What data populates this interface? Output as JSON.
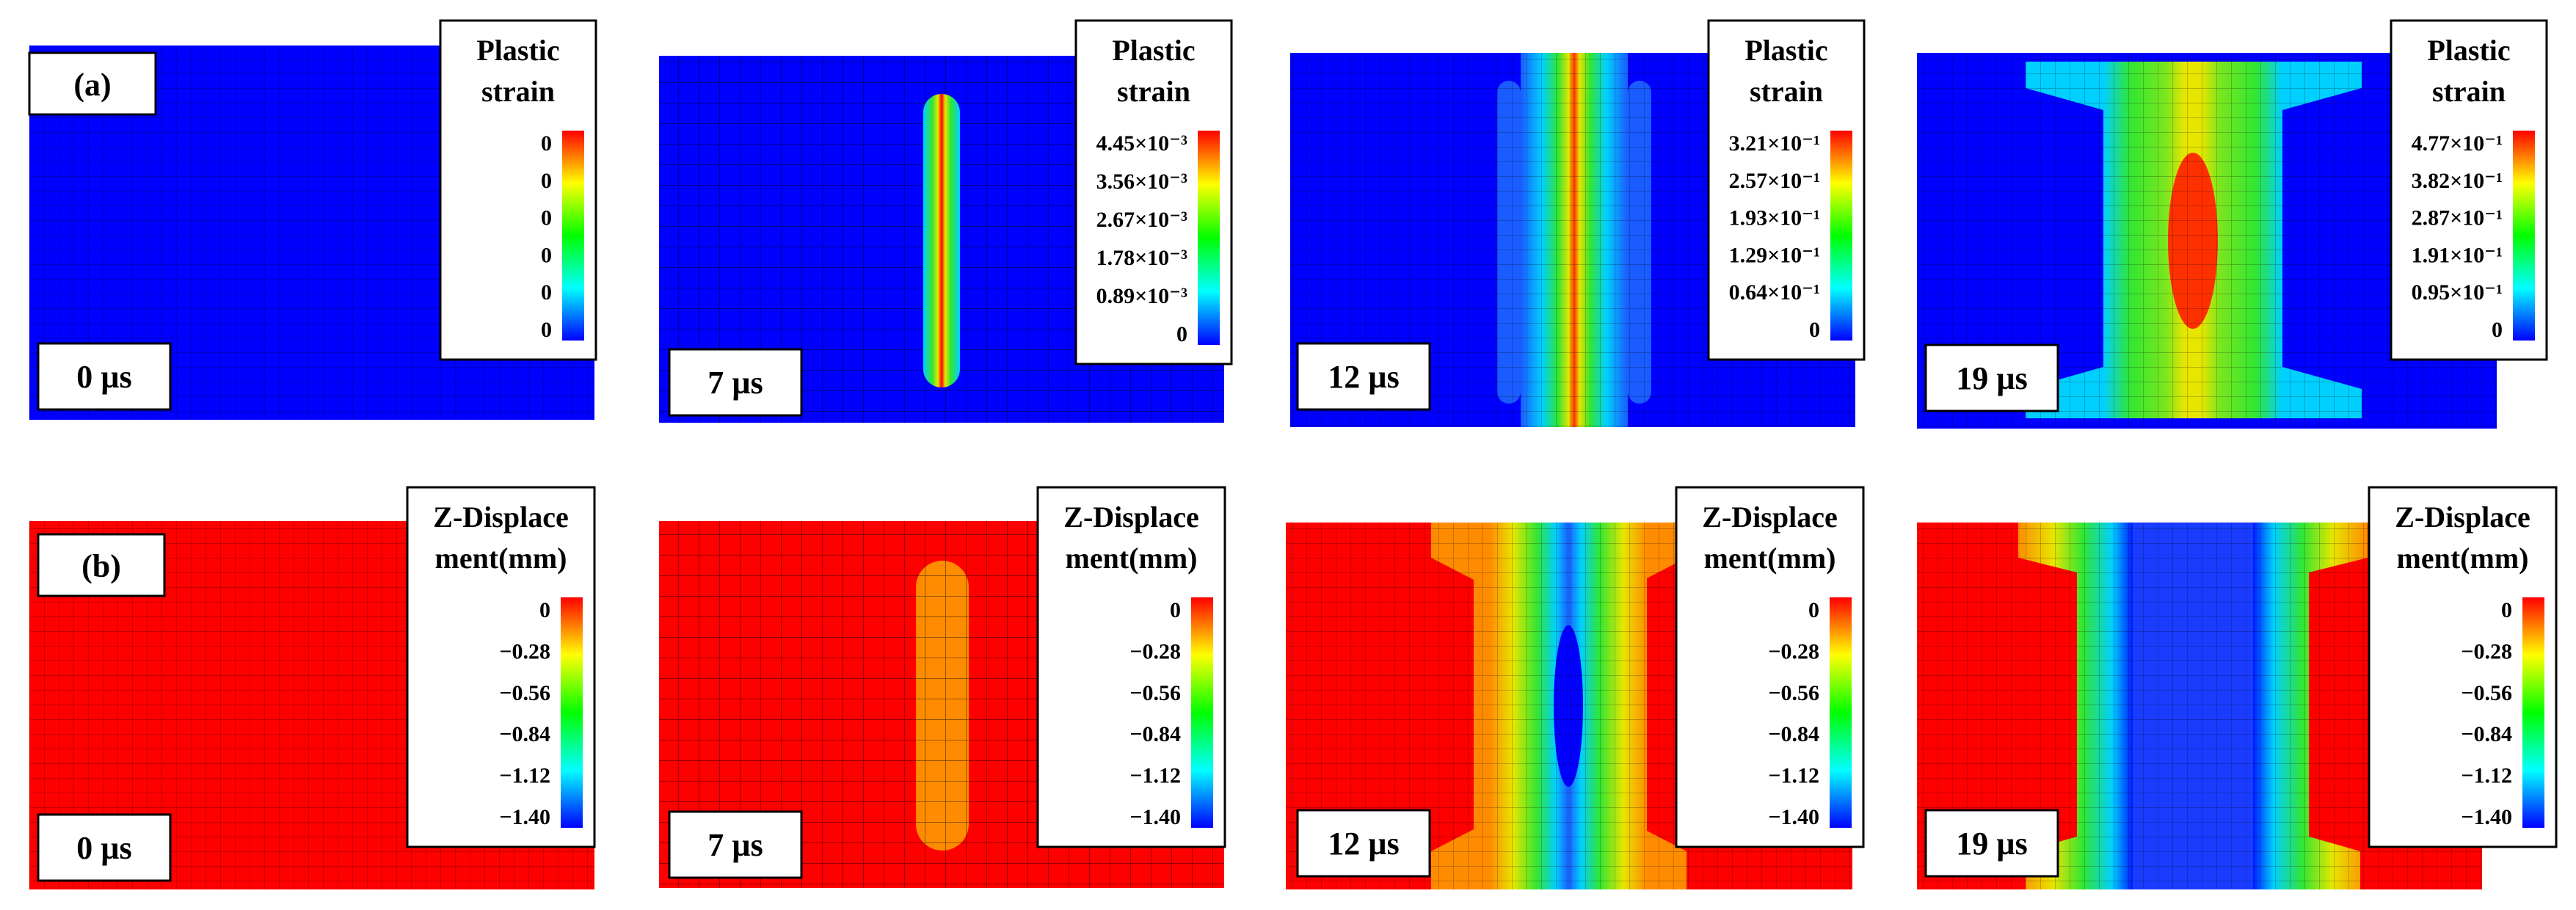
{
  "rows": [
    {
      "label": "(a)",
      "legend_title": [
        "Plastic",
        "strain"
      ],
      "panels": [
        {
          "time": "0 µs",
          "ticks": [
            "0",
            "0",
            "0",
            "0",
            "0",
            "0"
          ]
        },
        {
          "time": "7 µs",
          "ticks": [
            "4.45×10⁻³",
            "3.56×10⁻³",
            "2.67×10⁻³",
            "1.78×10⁻³",
            "0.89×10⁻³",
            "0"
          ]
        },
        {
          "time": "12 µs",
          "ticks": [
            "3.21×10⁻¹",
            "2.57×10⁻¹",
            "1.93×10⁻¹",
            "1.29×10⁻¹",
            "0.64×10⁻¹",
            "0"
          ]
        },
        {
          "time": "19 µs",
          "ticks": [
            "4.77×10⁻¹",
            "3.82×10⁻¹",
            "2.87×10⁻¹",
            "1.91×10⁻¹",
            "0.95×10⁻¹",
            "0"
          ]
        }
      ]
    },
    {
      "label": "(b)",
      "legend_title": [
        "Z-Displace",
        "ment(mm)"
      ],
      "panels": [
        {
          "time": "0 µs",
          "ticks": [
            "0",
            "−0.28",
            "−0.56",
            "−0.84",
            "−1.12",
            "−1.40"
          ]
        },
        {
          "time": "7 µs",
          "ticks": [
            "0",
            "−0.28",
            "−0.56",
            "−0.84",
            "−1.12",
            "−1.40"
          ]
        },
        {
          "time": "12 µs",
          "ticks": [
            "0",
            "−0.28",
            "−0.56",
            "−0.84",
            "−1.12",
            "−1.40"
          ]
        },
        {
          "time": "19 µs",
          "ticks": [
            "0",
            "−0.28",
            "−0.56",
            "−0.84",
            "−1.12",
            "−1.40"
          ]
        }
      ]
    }
  ],
  "colorbar": [
    "#ff0000",
    "#ffff00",
    "#00ff00",
    "#00ffff",
    "#0000ff"
  ],
  "fringe_colors": {
    "blue": "#0000ff",
    "light_blue": "#1a5cff",
    "cyan": "#00d0ff",
    "green": "#32e632",
    "yellow": "#e6e600",
    "orange": "#ff8c00",
    "red": "#ff0000"
  }
}
